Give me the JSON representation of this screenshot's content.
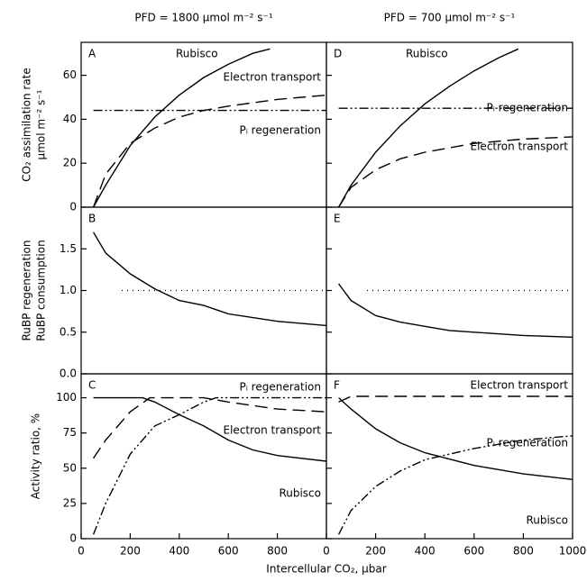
{
  "chart_data": [
    {
      "type": "line",
      "label": "A",
      "title": "PFD = 1800 μmol m⁻² s⁻¹",
      "ylabel": [
        "CO₂ assimilation rate",
        "μmol m⁻² s⁻¹"
      ],
      "xlim": [
        0,
        1000
      ],
      "ylim": [
        0,
        75
      ],
      "yticks": [
        0,
        20,
        40,
        60
      ],
      "series": [
        {
          "name": "Rubisco",
          "style": "solid",
          "color": "#000",
          "x": [
            50,
            100,
            200,
            300,
            400,
            500,
            600,
            700,
            770
          ],
          "values": [
            0,
            10,
            28,
            41,
            51,
            59,
            65,
            70,
            72
          ]
        },
        {
          "name": "Electron transport",
          "style": "dashed",
          "color": "#000",
          "x": [
            50,
            100,
            200,
            300,
            400,
            500,
            600,
            800,
            1000
          ],
          "values": [
            0,
            15,
            29,
            36,
            41,
            44,
            46,
            49,
            51
          ]
        },
        {
          "name": "Pᵢ regeneration",
          "style": "dashdot",
          "color": "#000",
          "x": [
            50,
            1000
          ],
          "values": [
            44,
            44
          ]
        }
      ]
    },
    {
      "type": "line",
      "label": "D",
      "title": "PFD = 700 μmol m⁻² s⁻¹",
      "xlim": [
        0,
        1000
      ],
      "ylim": [
        0,
        75
      ],
      "series": [
        {
          "name": "Rubisco",
          "style": "solid",
          "color": "#000",
          "x": [
            50,
            100,
            200,
            300,
            400,
            500,
            600,
            700,
            780
          ],
          "values": [
            0,
            10,
            25,
            37,
            47,
            55,
            62,
            68,
            72
          ]
        },
        {
          "name": "Pᵢ regeneration",
          "style": "dashdot",
          "color": "#000",
          "x": [
            50,
            1000
          ],
          "values": [
            45,
            45
          ]
        },
        {
          "name": "Electron transport",
          "style": "dashed",
          "color": "#000",
          "x": [
            50,
            100,
            200,
            300,
            400,
            500,
            600,
            800,
            1000
          ],
          "values": [
            0,
            9,
            17,
            22,
            25,
            27,
            29,
            31,
            32
          ]
        }
      ]
    },
    {
      "type": "line",
      "label": "B",
      "ylabel": [
        "RuBP regeneration",
        "RuBP consumption"
      ],
      "xlim": [
        0,
        1000
      ],
      "ylim": [
        0,
        2
      ],
      "yticks": [
        {
          "value": 0,
          "label": "0.0"
        },
        0.5,
        {
          "value": 1,
          "label": "1.0"
        },
        1.5
      ],
      "hline": 1,
      "series": [
        {
          "style": "solid",
          "color": "#000",
          "x": [
            50,
            100,
            200,
            300,
            400,
            500,
            600,
            800,
            1000
          ],
          "values": [
            1.7,
            1.45,
            1.2,
            1.02,
            0.88,
            0.82,
            0.72,
            0.63,
            0.58
          ]
        }
      ]
    },
    {
      "type": "line",
      "label": "E",
      "xlim": [
        0,
        1000
      ],
      "ylim": [
        0,
        2
      ],
      "hline": 1,
      "series": [
        {
          "style": "solid",
          "color": "#000",
          "x": [
            50,
            100,
            200,
            300,
            400,
            500,
            600,
            800,
            1000
          ],
          "values": [
            1.08,
            0.88,
            0.7,
            0.62,
            0.57,
            0.52,
            0.5,
            0.46,
            0.44
          ]
        }
      ]
    },
    {
      "type": "line",
      "label": "C",
      "ylabel": [
        "Activity ratio, %"
      ],
      "xlabel": "Intercellular CO₂, μbar",
      "xlim": [
        0,
        1000
      ],
      "ylim": [
        0,
        117
      ],
      "yticks": [
        0,
        25,
        50,
        75,
        100
      ],
      "xticks": [
        0,
        200,
        400,
        600,
        800
      ],
      "series": [
        {
          "name": "Pᵢ regeneration",
          "style": "dashdot",
          "color": "#000",
          "x": [
            50,
            100,
            200,
            300,
            400,
            500,
            550,
            1000
          ],
          "values": [
            3,
            25,
            60,
            80,
            88,
            97,
            100,
            100
          ]
        },
        {
          "name": "Electron transport",
          "style": "dashed",
          "color": "#000",
          "x": [
            50,
            100,
            200,
            280,
            500,
            600,
            800,
            1000
          ],
          "values": [
            57,
            70,
            90,
            100,
            100,
            97,
            92,
            90
          ]
        },
        {
          "name": "Rubisco",
          "style": "solid",
          "color": "#000",
          "x": [
            50,
            250,
            300,
            400,
            500,
            600,
            700,
            800,
            1000
          ],
          "values": [
            100,
            100,
            97,
            88,
            80,
            70,
            63,
            59,
            55
          ]
        }
      ]
    },
    {
      "type": "line",
      "label": "F",
      "xlim": [
        0,
        1000
      ],
      "ylim": [
        0,
        117
      ],
      "xticks": [
        0,
        200,
        400,
        600,
        800,
        1000
      ],
      "series": [
        {
          "name": "Electron transport",
          "style": "dashed",
          "color": "#000",
          "x": [
            50,
            100,
            1000
          ],
          "values": [
            97,
            101,
            101
          ]
        },
        {
          "name": "Pᵢ regeneration",
          "style": "dashdot",
          "color": "#000",
          "x": [
            50,
            100,
            200,
            300,
            400,
            600,
            800,
            1000
          ],
          "values": [
            3,
            20,
            37,
            48,
            56,
            64,
            70,
            73
          ]
        },
        {
          "name": "Rubisco",
          "style": "solid",
          "color": "#000",
          "x": [
            50,
            100,
            200,
            300,
            400,
            600,
            800,
            1000
          ],
          "values": [
            100,
            92,
            78,
            68,
            61,
            52,
            46,
            42
          ]
        }
      ]
    }
  ]
}
